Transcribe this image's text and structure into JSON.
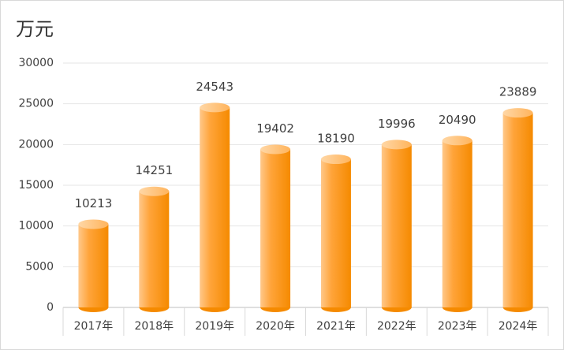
{
  "chart_data": {
    "type": "bar",
    "title": "万元",
    "categories": [
      "2017年",
      "2018年",
      "2019年",
      "2020年",
      "2021年",
      "2022年",
      "2023年",
      "2024年"
    ],
    "values": [
      10213,
      14251,
      24543,
      19402,
      18190,
      19996,
      20490,
      23889
    ],
    "color": "#ff9a1e",
    "ylim": [
      0,
      30000
    ],
    "yticks": [
      0,
      5000,
      10000,
      15000,
      20000,
      25000,
      30000
    ],
    "grid": true
  }
}
